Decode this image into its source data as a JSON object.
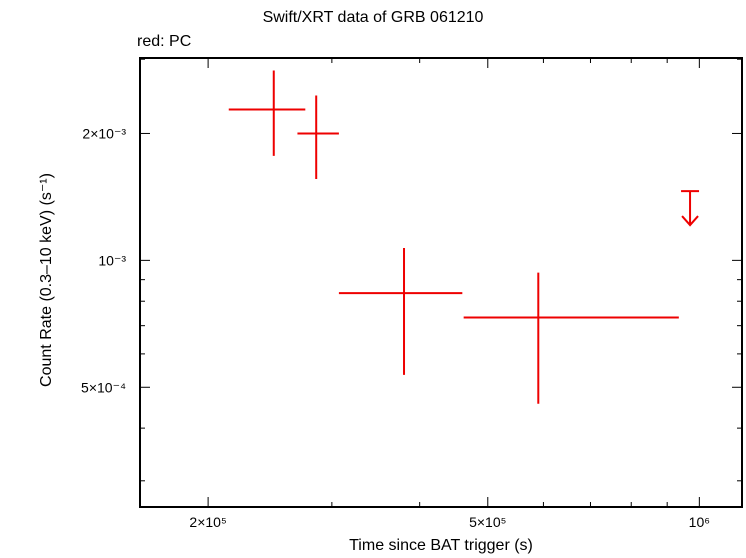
{
  "chart_data": {
    "type": "scatter",
    "title": "Swift/XRT data of GRB 061210",
    "subtitle": "red: PC",
    "xlabel": "Time since BAT trigger (s)",
    "ylabel": "Count Rate (0.3–10 keV) (s⁻¹)",
    "xscale": "log",
    "yscale": "log",
    "xlim": [
      160000,
      1150000
    ],
    "ylim": [
      0.00026,
      0.00302
    ],
    "x_ticks": [
      {
        "value": 200000,
        "label": "2×10⁵"
      },
      {
        "value": 500000,
        "label": "5×10⁵"
      },
      {
        "value": 1000000,
        "label": "10⁶"
      }
    ],
    "y_ticks": [
      {
        "value": 0.0005,
        "label": "5×10⁻⁴"
      },
      {
        "value": 0.001,
        "label": "10⁻³"
      },
      {
        "value": 0.002,
        "label": "2×10⁻³"
      }
    ],
    "grid": false,
    "series": [
      {
        "color": "#ee0000",
        "points": [
          {
            "x": 248000,
            "xlo": 214000,
            "xhi": 275000,
            "y": 0.00228,
            "ylo": 0.00177,
            "yhi": 0.00282
          },
          {
            "x": 285000,
            "xlo": 268000,
            "xhi": 307000,
            "y": 0.002,
            "ylo": 0.00156,
            "yhi": 0.00246
          },
          {
            "x": 380000,
            "xlo": 307000,
            "xhi": 460000,
            "y": 0.000836,
            "ylo": 0.000535,
            "yhi": 0.00107
          },
          {
            "x": 590000,
            "xlo": 462000,
            "xhi": 935000,
            "y": 0.000732,
            "ylo": 0.000457,
            "yhi": 0.000935
          }
        ],
        "upper_limits": [
          {
            "x": 970000,
            "y": 0.00146
          }
        ]
      }
    ]
  }
}
